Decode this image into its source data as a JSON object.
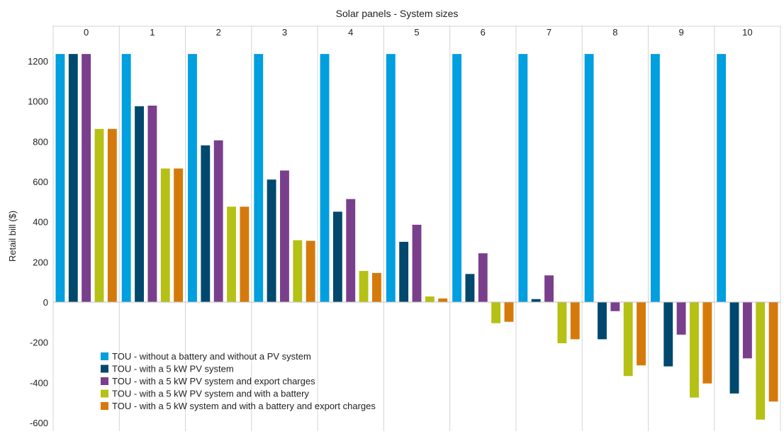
{
  "chart_data": {
    "type": "bar",
    "title": "Solar panels - System sizes",
    "ylabel": "Retail bill ($)",
    "ylim": [
      -620,
      1300
    ],
    "yticks": [
      -600,
      -400,
      -200,
      0,
      200,
      400,
      600,
      800,
      1000,
      1200
    ],
    "grid": false,
    "legend_position": "bottom-left",
    "categories": [
      "0",
      "1",
      "2",
      "3",
      "4",
      "5",
      "6",
      "7",
      "8",
      "9",
      "10"
    ],
    "series": [
      {
        "name": "TOU - without a battery and without a PV system",
        "color": "#009fdf",
        "values": [
          1235,
          1235,
          1235,
          1235,
          1235,
          1235,
          1235,
          1235,
          1235,
          1235,
          1235
        ]
      },
      {
        "name": "TOU - with a 5 kW PV system",
        "color": "#00486e",
        "values": [
          1235,
          975,
          780,
          610,
          450,
          300,
          140,
          15,
          -185,
          -320,
          -455
        ]
      },
      {
        "name": "TOU - with a 5 kW PV system and export charges",
        "color": "#7a3f8c",
        "values": [
          1235,
          978,
          805,
          655,
          513,
          385,
          243,
          133,
          -45,
          -162,
          -280
        ]
      },
      {
        "name": "TOU - with a 5 kW PV system and with a battery",
        "color": "#b5c114",
        "values": [
          862,
          665,
          475,
          308,
          155,
          28,
          -105,
          -205,
          -368,
          -475,
          -585
        ]
      },
      {
        "name": "TOU - with a 5 kW system and with a battery and export charges",
        "color": "#d57a0a",
        "values": [
          862,
          665,
          475,
          305,
          145,
          18,
          -98,
          -185,
          -315,
          -405,
          -495
        ]
      }
    ]
  }
}
